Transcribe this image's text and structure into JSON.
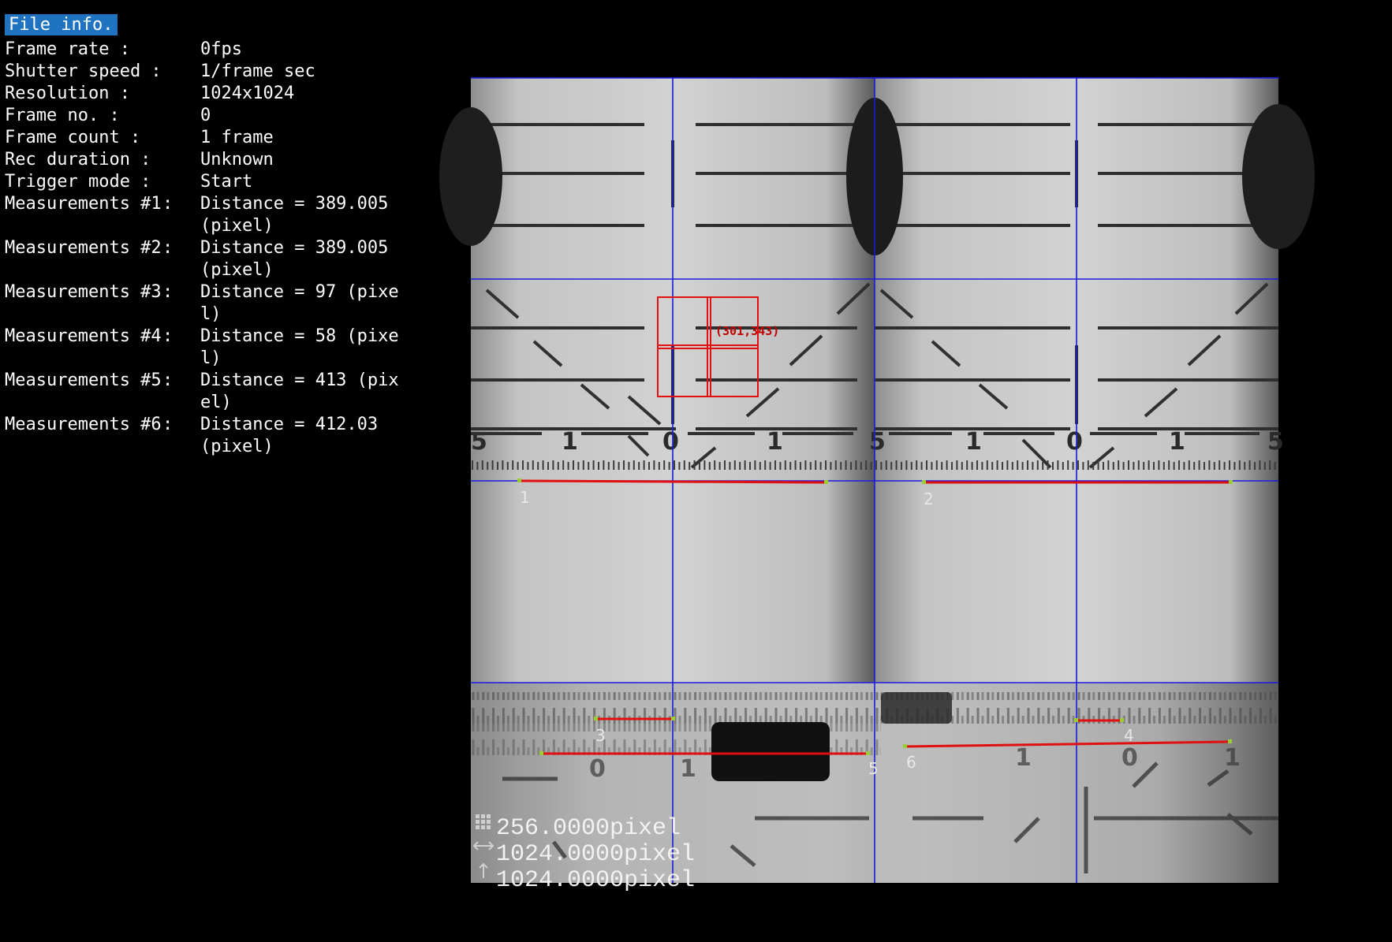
{
  "panel": {
    "title": "File info.",
    "fields": [
      {
        "label": "Frame rate :",
        "value": "0fps"
      },
      {
        "label": "Shutter speed :",
        "value": "1/frame sec"
      },
      {
        "label": "Resolution :",
        "value": "1024x1024"
      },
      {
        "label": "Frame no. :",
        "value": "0"
      },
      {
        "label": "Frame count :",
        "value": "1 frame"
      },
      {
        "label": "Rec duration :",
        "value": "Unknown"
      },
      {
        "label": "Trigger mode :",
        "value": "Start"
      }
    ],
    "measurements": [
      {
        "label": "Measurements #1",
        "sep": ":",
        "value": "Distance = 389.005 (pixel)"
      },
      {
        "label": "Measurements #2",
        "sep": ":",
        "value": "Distance = 389.005 (pixel)"
      },
      {
        "label": "Measurements #3",
        "sep": ":",
        "value": "Distance = 97 (pixel)"
      },
      {
        "label": "Measurements #4",
        "sep": ":",
        "value": "Distance = 58 (pixel)"
      },
      {
        "label": "Measurements #5",
        "sep": ":",
        "value": "Distance = 413 (pixel)"
      },
      {
        "label": "Measurements #6",
        "sep": ":",
        "value": "Distance = 412.03 (pixel)"
      }
    ]
  },
  "viewer": {
    "marker_labels": [
      "1",
      "2",
      "3",
      "4",
      "5",
      "6"
    ],
    "roi_coordinate": "(301,343)",
    "scale_readouts": [
      "256.0000pixel",
      "1024.0000pixel",
      "1024.0000pixel"
    ],
    "icons": [
      "grid-icon",
      "width-icon",
      "height-icon"
    ]
  },
  "colors": {
    "accent": "#1f73c0",
    "grid": "#1a1adc",
    "measure_line": "#e01010",
    "endpoint": "#9acd32"
  }
}
